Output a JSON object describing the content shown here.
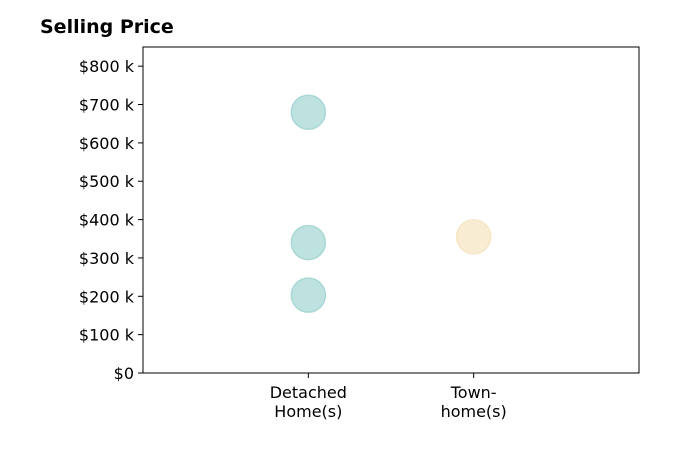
{
  "chart_data": {
    "type": "scatter",
    "title": "Selling Price",
    "xlabel": "",
    "ylabel": "",
    "categories": [
      [
        "Detached",
        "Home(s)"
      ],
      [
        "Town-",
        "home(s)"
      ]
    ],
    "x_range": [
      -1,
      2
    ],
    "ylim": [
      0,
      850
    ],
    "y_ticks": [
      {
        "value": 0,
        "label": "$0"
      },
      {
        "value": 100,
        "label": "$100 k"
      },
      {
        "value": 200,
        "label": "$200 k"
      },
      {
        "value": 300,
        "label": "$300 k"
      },
      {
        "value": 400,
        "label": "$400 k"
      },
      {
        "value": 500,
        "label": "$500 k"
      },
      {
        "value": 600,
        "label": "$600 k"
      },
      {
        "value": 700,
        "label": "$700 k"
      },
      {
        "value": 800,
        "label": "$800 k"
      }
    ],
    "series": [
      {
        "category_index": 0,
        "color": "#a8d8d4",
        "points": [
          203,
          340,
          680
        ]
      },
      {
        "category_index": 1,
        "color": "#f6e6c4",
        "points": [
          355
        ]
      }
    ],
    "grid": false,
    "legend": "none"
  }
}
